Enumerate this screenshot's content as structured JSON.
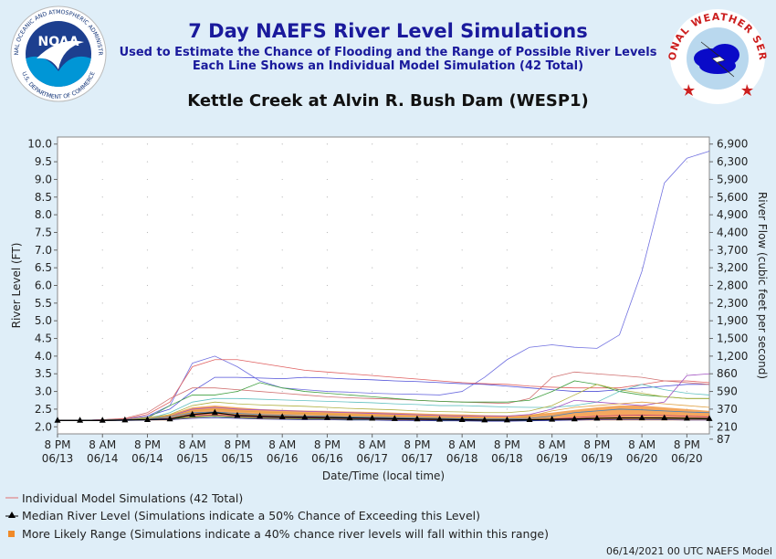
{
  "header": {
    "title": "7 Day NAEFS River Level Simulations",
    "subtitle1": "Used to Estimate the Chance of Flooding and the Range of Possible River Levels",
    "subtitle2": "Each Line Shows an Individual Model Simulation (42 Total)",
    "location": "Kettle Creek at Alvin R. Bush Dam (WESP1)"
  },
  "logos": {
    "noaa_text": "NOAA",
    "noaa_ring": "NATIONAL OCEANIC AND ATMOSPHERIC ADMINISTRATION",
    "noaa_ring_bottom": "U.S. DEPARTMENT OF COMMERCE",
    "nws_ring": "NATIONAL WEATHER SERVICE"
  },
  "legend": {
    "individual": "Individual Model Simulations (42 Total)",
    "median": "Median River Level (Simulations indicate a 50% Chance of Exceeding this Level)",
    "likely": "More Likely Range (Simulations indicate a 40% chance river levels will fall within this range)"
  },
  "footer": "06/14/2021 00 UTC NAEFS Model",
  "chart_data": {
    "type": "line",
    "xlabel": "Date/Time (local time)",
    "ylabel": "River Level (FT)",
    "y2label": "River Flow (cubic feet per second)",
    "ylim": [
      1.8,
      10.2
    ],
    "yticks": [
      "10.0",
      "9.5",
      "9.0",
      "8.5",
      "8.0",
      "7.5",
      "7.0",
      "6.5",
      "6.0",
      "5.5",
      "5.0",
      "4.5",
      "4.0",
      "3.5",
      "3.0",
      "2.5",
      "2.0"
    ],
    "y2ticks": [
      {
        "level": 10.0,
        "label": "6,900"
      },
      {
        "level": 9.5,
        "label": "6,300"
      },
      {
        "level": 9.0,
        "label": "5,900"
      },
      {
        "level": 8.5,
        "label": "5,600"
      },
      {
        "level": 8.0,
        "label": "4,900"
      },
      {
        "level": 7.5,
        "label": "4,400"
      },
      {
        "level": 7.0,
        "label": "3,700"
      },
      {
        "level": 6.5,
        "label": "3,200"
      },
      {
        "level": 6.0,
        "label": "2,800"
      },
      {
        "level": 5.5,
        "label": "2,300"
      },
      {
        "level": 5.0,
        "label": "1,900"
      },
      {
        "level": 4.5,
        "label": "1,500"
      },
      {
        "level": 4.0,
        "label": "1,200"
      },
      {
        "level": 3.5,
        "label": "860"
      },
      {
        "level": 3.0,
        "label": "590"
      },
      {
        "level": 2.5,
        "label": "370"
      },
      {
        "level": 2.0,
        "label": "210"
      },
      {
        "level": 1.65,
        "label": "87"
      }
    ],
    "xticks": [
      {
        "time": "8 PM",
        "date": "06/13"
      },
      {
        "time": "8 AM",
        "date": "06/14"
      },
      {
        "time": "8 PM",
        "date": "06/14"
      },
      {
        "time": "8 AM",
        "date": "06/15"
      },
      {
        "time": "8 PM",
        "date": "06/15"
      },
      {
        "time": "8 AM",
        "date": "06/16"
      },
      {
        "time": "8 PM",
        "date": "06/16"
      },
      {
        "time": "8 AM",
        "date": "06/17"
      },
      {
        "time": "8 PM",
        "date": "06/17"
      },
      {
        "time": "8 AM",
        "date": "06/18"
      },
      {
        "time": "8 PM",
        "date": "06/18"
      },
      {
        "time": "8 AM",
        "date": "06/19"
      },
      {
        "time": "8 PM",
        "date": "06/19"
      },
      {
        "time": "8 AM",
        "date": "06/20"
      },
      {
        "time": "8 PM",
        "date": "06/20"
      }
    ],
    "x_hours": [
      0,
      6,
      12,
      18,
      24,
      30,
      36,
      42,
      48,
      54,
      60,
      66,
      72,
      78,
      84,
      90,
      96,
      102,
      108,
      114,
      120,
      126,
      132,
      138,
      144,
      150,
      156,
      162,
      168,
      174
    ],
    "median": [
      2.18,
      2.18,
      2.18,
      2.19,
      2.2,
      2.22,
      2.35,
      2.4,
      2.32,
      2.3,
      2.28,
      2.27,
      2.26,
      2.25,
      2.24,
      2.23,
      2.22,
      2.21,
      2.2,
      2.19,
      2.19,
      2.2,
      2.21,
      2.22,
      2.24,
      2.25,
      2.25,
      2.25,
      2.24,
      2.23
    ],
    "likely_low": [
      2.18,
      2.18,
      2.18,
      2.18,
      2.18,
      2.18,
      2.25,
      2.3,
      2.25,
      2.22,
      2.21,
      2.2,
      2.2,
      2.19,
      2.19,
      2.18,
      2.18,
      2.17,
      2.17,
      2.16,
      2.16,
      2.17,
      2.18,
      2.18,
      2.18,
      2.18,
      2.18,
      2.18,
      2.18,
      2.18
    ],
    "likely_high": [
      2.18,
      2.18,
      2.2,
      2.22,
      2.28,
      2.35,
      2.55,
      2.6,
      2.55,
      2.5,
      2.48,
      2.46,
      2.45,
      2.43,
      2.42,
      2.4,
      2.38,
      2.36,
      2.35,
      2.33,
      2.32,
      2.35,
      2.4,
      2.48,
      2.55,
      2.6,
      2.6,
      2.55,
      2.5,
      2.45
    ],
    "series": [
      {
        "color": "#5050d8",
        "values": [
          2.18,
          2.18,
          2.2,
          2.22,
          2.3,
          2.5,
          3.0,
          3.4,
          3.4,
          3.38,
          3.36,
          3.4,
          3.38,
          3.35,
          3.33,
          3.3,
          3.28,
          3.25,
          3.22,
          3.2,
          3.15,
          3.1,
          3.05,
          3.0,
          3.0,
          3.05,
          3.1,
          3.15,
          3.2,
          3.2
        ]
      },
      {
        "color": "#7070e0",
        "values": [
          2.18,
          2.18,
          2.2,
          2.22,
          2.3,
          2.6,
          3.8,
          4.0,
          3.7,
          3.3,
          3.1,
          3.05,
          3.0,
          2.98,
          2.95,
          2.93,
          2.92,
          2.9,
          3.0,
          3.4,
          3.9,
          4.25,
          4.32,
          4.25,
          4.22,
          4.6,
          6.4,
          8.9,
          9.6,
          9.8
        ]
      },
      {
        "color": "#e06060",
        "values": [
          2.18,
          2.18,
          2.2,
          2.22,
          2.35,
          2.7,
          3.7,
          3.9,
          3.9,
          3.8,
          3.7,
          3.6,
          3.55,
          3.5,
          3.45,
          3.4,
          3.35,
          3.3,
          3.25,
          3.22,
          3.2,
          3.15,
          3.12,
          3.1,
          3.1,
          3.1,
          3.2,
          3.3,
          3.3,
          3.25
        ]
      },
      {
        "color": "#d07070",
        "values": [
          2.18,
          2.18,
          2.2,
          2.24,
          2.4,
          2.8,
          3.1,
          3.1,
          3.05,
          3.0,
          2.95,
          2.9,
          2.85,
          2.82,
          2.8,
          2.78,
          2.75,
          2.72,
          2.7,
          2.68,
          2.66,
          2.8,
          3.4,
          3.55,
          3.5,
          3.45,
          3.4,
          3.3,
          3.25,
          3.2
        ]
      },
      {
        "color": "#40a040",
        "values": [
          2.18,
          2.18,
          2.19,
          2.2,
          2.25,
          2.6,
          2.9,
          2.9,
          3.0,
          3.25,
          3.1,
          3.0,
          2.95,
          2.9,
          2.85,
          2.8,
          2.75,
          2.72,
          2.7,
          2.7,
          2.7,
          2.75,
          3.0,
          3.3,
          3.2,
          3.0,
          2.9,
          2.85,
          2.8,
          2.8
        ]
      },
      {
        "color": "#60c0c0",
        "values": [
          2.18,
          2.18,
          2.19,
          2.2,
          2.22,
          2.4,
          2.7,
          2.8,
          2.8,
          2.78,
          2.76,
          2.74,
          2.72,
          2.7,
          2.68,
          2.65,
          2.63,
          2.6,
          2.6,
          2.58,
          2.56,
          2.55,
          2.55,
          2.6,
          2.7,
          3.0,
          3.2,
          3.05,
          2.95,
          2.9
        ]
      },
      {
        "color": "#b0b040",
        "values": [
          2.18,
          2.18,
          2.19,
          2.2,
          2.22,
          2.35,
          2.6,
          2.7,
          2.65,
          2.62,
          2.6,
          2.58,
          2.55,
          2.52,
          2.5,
          2.48,
          2.45,
          2.43,
          2.42,
          2.4,
          2.4,
          2.45,
          2.6,
          2.9,
          3.2,
          3.05,
          2.95,
          2.85,
          2.8,
          2.8
        ]
      },
      {
        "color": "#a050c0",
        "values": [
          2.18,
          2.18,
          2.19,
          2.2,
          2.22,
          2.3,
          2.5,
          2.55,
          2.5,
          2.48,
          2.46,
          2.44,
          2.42,
          2.4,
          2.38,
          2.36,
          2.34,
          2.32,
          2.3,
          2.3,
          2.3,
          2.35,
          2.5,
          2.75,
          2.7,
          2.65,
          2.6,
          2.7,
          3.45,
          3.5
        ]
      },
      {
        "color": "#e0a040",
        "values": [
          2.18,
          2.18,
          2.19,
          2.2,
          2.22,
          2.3,
          2.45,
          2.5,
          2.45,
          2.42,
          2.4,
          2.38,
          2.36,
          2.34,
          2.32,
          2.3,
          2.28,
          2.26,
          2.25,
          2.24,
          2.23,
          2.3,
          2.45,
          2.55,
          2.6,
          2.65,
          2.7,
          2.65,
          2.6,
          2.55
        ]
      },
      {
        "color": "#4080c0",
        "values": [
          2.18,
          2.18,
          2.19,
          2.2,
          2.21,
          2.28,
          2.4,
          2.42,
          2.38,
          2.35,
          2.33,
          2.31,
          2.3,
          2.28,
          2.27,
          2.26,
          2.25,
          2.24,
          2.23,
          2.22,
          2.22,
          2.24,
          2.3,
          2.4,
          2.45,
          2.5,
          2.48,
          2.45,
          2.42,
          2.4
        ]
      },
      {
        "color": "#c04080",
        "values": [
          2.18,
          2.18,
          2.18,
          2.19,
          2.2,
          2.24,
          2.32,
          2.34,
          2.3,
          2.28,
          2.26,
          2.25,
          2.24,
          2.23,
          2.22,
          2.21,
          2.2,
          2.19,
          2.18,
          2.18,
          2.18,
          2.19,
          2.22,
          2.26,
          2.3,
          2.32,
          2.33,
          2.32,
          2.3,
          2.28
        ]
      },
      {
        "color": "#308030",
        "values": [
          2.18,
          2.18,
          2.18,
          2.19,
          2.2,
          2.22,
          2.28,
          2.3,
          2.27,
          2.25,
          2.24,
          2.23,
          2.22,
          2.21,
          2.2,
          2.19,
          2.18,
          2.18,
          2.17,
          2.17,
          2.17,
          2.18,
          2.2,
          2.22,
          2.24,
          2.25,
          2.25,
          2.24,
          2.23,
          2.22
        ]
      },
      {
        "color": "#3030a0",
        "values": [
          2.18,
          2.18,
          2.18,
          2.18,
          2.19,
          2.2,
          2.24,
          2.26,
          2.24,
          2.22,
          2.21,
          2.2,
          2.2,
          2.19,
          2.19,
          2.18,
          2.18,
          2.17,
          2.17,
          2.16,
          2.16,
          2.17,
          2.18,
          2.19,
          2.2,
          2.2,
          2.2,
          2.2,
          2.19,
          2.19
        ]
      }
    ]
  }
}
